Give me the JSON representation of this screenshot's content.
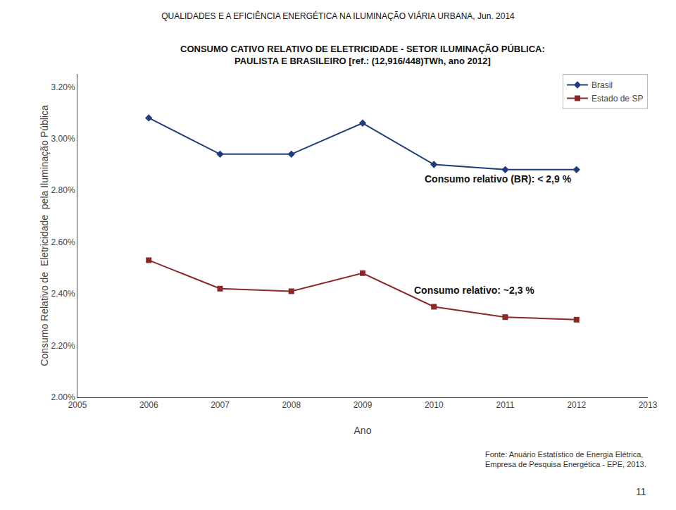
{
  "chart_data": {
    "type": "line",
    "title": "QUALIDADES E A EFICIÊNCIA ENERGÉTICA NA ILUMINAÇÃO VIÁRIA URBANA, Jun. 2014",
    "subtitle": "CONSUMO CATIVO RELATIVO DE ELETRICIDADE - SETOR ILUMINAÇÃO PÚBLICA:\nPAULISTA E BRASILEIRO [ref.: (12,916/448)TWh, ano 2012]",
    "xlabel": "Ano",
    "ylabel": "Consumo Relativo de  Eletricidade  pela Iluminação Pública",
    "x": [
      2006,
      2007,
      2008,
      2009,
      2010,
      2011,
      2012
    ],
    "series": [
      {
        "name": "Brasil",
        "color": "#1F3D7A",
        "marker": "diamond",
        "values": [
          0.0308,
          0.0294,
          0.0294,
          0.0306,
          0.029,
          0.0288,
          0.0288
        ]
      },
      {
        "name": "Estado de SP",
        "color": "#8B2828",
        "marker": "square",
        "values": [
          0.0253,
          0.0242,
          0.0241,
          0.0248,
          0.0235,
          0.0231,
          0.023
        ]
      }
    ],
    "xlim": [
      2005,
      2013
    ],
    "xticks": [
      2005,
      2006,
      2007,
      2008,
      2009,
      2010,
      2011,
      2012,
      2013
    ],
    "ylim": [
      0.02,
      0.0325
    ],
    "yticks": [
      {
        "value": 0.02,
        "label": "2.00%"
      },
      {
        "value": 0.022,
        "label": "2.20%"
      },
      {
        "value": 0.024,
        "label": "2.40%"
      },
      {
        "value": 0.026,
        "label": "2.60%"
      },
      {
        "value": 0.028,
        "label": "2.80%"
      },
      {
        "value": 0.03,
        "label": "3.00%"
      },
      {
        "value": 0.032,
        "label": "3.20%"
      }
    ],
    "grid": false,
    "legend": "upper right",
    "annotations": [
      {
        "text": "Consumo relativo (BR): < 2,9 %",
        "x": 2009.85,
        "y": 0.02845
      },
      {
        "text": "Consumo relativo: ~2,3 %",
        "x": 2009.7,
        "y": 0.02415
      },
      {
        "text": "Fonte: Anuário Estatístico de Energia Elétrica,\nEmpresa de Pesquisa Energética - EPE, 2013."
      },
      {
        "text": "11"
      }
    ]
  }
}
